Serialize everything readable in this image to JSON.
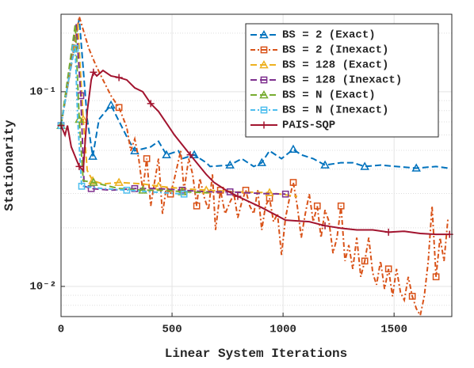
{
  "chart_data": {
    "type": "line",
    "xlabel": "Linear System Iterations",
    "ylabel": "Stationarity",
    "log_y": true,
    "grid": true,
    "legend": "northeast",
    "xlim": [
      0,
      1760
    ],
    "xticks": [
      0,
      500,
      1000,
      1500
    ],
    "ylim": [
      0.007,
      0.25
    ],
    "yticks": [
      {
        "value": 0.01,
        "label": "10⁻²"
      },
      {
        "value": 0.1,
        "label": "10⁻¹"
      }
    ],
    "yminorticks": [
      0.008,
      0.009,
      0.02,
      0.03,
      0.04,
      0.05,
      0.06,
      0.07,
      0.08,
      0.09,
      0.2
    ],
    "series": [
      {
        "name": "BS = 2 (Exact)",
        "color": "#0072BD",
        "dash": "8,4",
        "marker": "triangle",
        "marker_every": 3,
        "x": [
          0,
          82,
          118,
          143,
          171,
          200,
          225,
          271,
          296,
          332,
          404,
          439,
          475,
          529,
          546,
          600,
          654,
          671,
          761,
          814,
          868,
          904,
          939,
          993,
          1046,
          1082,
          1136,
          1189,
          1261,
          1314,
          1368,
          1439,
          1511,
          1600,
          1689,
          1743
        ],
        "values": [
          0.067,
          0.238,
          0.0721,
          0.0466,
          0.0721,
          0.0792,
          0.0853,
          0.067,
          0.0588,
          0.0497,
          0.0521,
          0.0556,
          0.0474,
          0.0497,
          0.0453,
          0.0474,
          0.0432,
          0.0413,
          0.042,
          0.0453,
          0.0413,
          0.0432,
          0.0497,
          0.0453,
          0.0506,
          0.0474,
          0.0453,
          0.042,
          0.0432,
          0.0432,
          0.0413,
          0.042,
          0.0413,
          0.0405,
          0.0413,
          0.0405
        ]
      },
      {
        "name": "BS = 2 (Inexact)",
        "color": "#D95319",
        "dash": "6,3,2,3",
        "marker": "square",
        "marker_every": 6,
        "x": [
          0,
          82,
          125,
          154,
          189,
          225,
          261,
          296,
          314,
          332,
          350,
          368,
          386,
          404,
          421,
          439,
          457,
          475,
          493,
          511,
          539,
          554,
          575,
          593,
          611,
          625,
          646,
          664,
          682,
          696,
          718,
          739,
          761,
          779,
          796,
          814,
          832,
          850,
          868,
          886,
          904,
          921,
          939,
          957,
          975,
          993,
          1011,
          1029,
          1046,
          1064,
          1082,
          1100,
          1118,
          1136,
          1154,
          1171,
          1189,
          1207,
          1225,
          1243,
          1261,
          1279,
          1296,
          1314,
          1332,
          1350,
          1368,
          1386,
          1404,
          1421,
          1439,
          1457,
          1475,
          1493,
          1511,
          1529,
          1546,
          1564,
          1582,
          1600,
          1618,
          1636,
          1654,
          1671,
          1689,
          1707,
          1725,
          1743
        ],
        "values": [
          0.067,
          0.243,
          0.167,
          0.139,
          0.115,
          0.0954,
          0.083,
          0.0657,
          0.0497,
          0.0572,
          0.0453,
          0.0312,
          0.0453,
          0.0259,
          0.0342,
          0.0453,
          0.0236,
          0.0327,
          0.0298,
          0.0359,
          0.0497,
          0.0312,
          0.0453,
          0.0376,
          0.0259,
          0.0359,
          0.0284,
          0.0247,
          0.0376,
          0.0195,
          0.0312,
          0.0236,
          0.0271,
          0.0298,
          0.0225,
          0.0271,
          0.0312,
          0.0259,
          0.0236,
          0.0312,
          0.0195,
          0.0259,
          0.0284,
          0.0215,
          0.0236,
          0.0145,
          0.0225,
          0.0284,
          0.0342,
          0.0259,
          0.0178,
          0.0236,
          0.0298,
          0.0215,
          0.0259,
          0.0178,
          0.0247,
          0.0215,
          0.0148,
          0.0178,
          0.0259,
          0.0135,
          0.0163,
          0.0123,
          0.0178,
          0.0112,
          0.0135,
          0.0178,
          0.0117,
          0.0102,
          0.0135,
          0.0097,
          0.0123,
          0.0089,
          0.0123,
          0.0093,
          0.0085,
          0.0112,
          0.0089,
          0.0077,
          0.0071,
          0.0089,
          0.0135,
          0.0259,
          0.0112,
          0.0178,
          0.0135,
          0.0225
        ]
      },
      {
        "name": "BS = 128 (Exact)",
        "color": "#EDB120",
        "dash": "8,4",
        "marker": "triangle",
        "marker_every": 2,
        "x": [
          0,
          75,
          100,
          118,
          143,
          189,
          261,
          368,
          439,
          546,
          654,
          796,
          939,
          1064
        ],
        "values": [
          0.067,
          0.225,
          0.0721,
          0.0394,
          0.0349,
          0.0336,
          0.0342,
          0.0336,
          0.0327,
          0.0318,
          0.0312,
          0.0306,
          0.0303,
          0.029
        ]
      },
      {
        "name": "BS = 128 (Inexact)",
        "color": "#7E2F8E",
        "dash": "8,4",
        "marker": "square",
        "marker_every": 2,
        "x": [
          0,
          68,
          89,
          104,
          136,
          225,
          332,
          439,
          546,
          654,
          761,
          904,
          1011
        ],
        "values": [
          0.067,
          0.225,
          0.0954,
          0.0327,
          0.0318,
          0.0312,
          0.0318,
          0.0318,
          0.0312,
          0.0306,
          0.0306,
          0.03,
          0.0298
        ]
      },
      {
        "name": "BS = N (Exact)",
        "color": "#77AC30",
        "dash": "8,4",
        "marker": "triangle",
        "marker_every": 2,
        "x": [
          0,
          64,
          82,
          100,
          146,
          261,
          368,
          475,
          546,
          664
        ],
        "values": [
          0.067,
          0.221,
          0.0721,
          0.0349,
          0.0342,
          0.0318,
          0.0312,
          0.0312,
          0.0306,
          0.0303
        ]
      },
      {
        "name": "BS = N (Inexact)",
        "color": "#4DBEEE",
        "dash": "6,3,2,3",
        "marker": "square",
        "marker_every": 2,
        "x": [
          0,
          46,
          64,
          75,
          93,
          189,
          296,
          404,
          554
        ],
        "values": [
          0.067,
          0.139,
          0.167,
          0.0721,
          0.0327,
          0.0318,
          0.0312,
          0.0306,
          0.0298
        ]
      },
      {
        "name": "PAIS-SQP",
        "color": "#A2142F",
        "dash": "none",
        "marker": "plus",
        "marker_every": 4,
        "x": [
          0,
          18,
          29,
          46,
          82,
          100,
          118,
          136,
          146,
          161,
          189,
          225,
          261,
          296,
          332,
          368,
          404,
          439,
          475,
          511,
          582,
          654,
          689,
          743,
          796,
          904,
          1011,
          1118,
          1189,
          1261,
          1332,
          1404,
          1475,
          1546,
          1618,
          1689,
          1750
        ],
        "values": [
          0.067,
          0.0599,
          0.067,
          0.0521,
          0.0413,
          0.0394,
          0.0792,
          0.115,
          0.126,
          0.1205,
          0.1286,
          0.1205,
          0.1183,
          0.115,
          0.1047,
          0.1,
          0.0869,
          0.0792,
          0.0689,
          0.0599,
          0.0474,
          0.0376,
          0.0342,
          0.0312,
          0.029,
          0.0254,
          0.0219,
          0.0215,
          0.0205,
          0.0199,
          0.0195,
          0.0195,
          0.019,
          0.0192,
          0.0187,
          0.0185,
          0.0185
        ]
      }
    ]
  }
}
